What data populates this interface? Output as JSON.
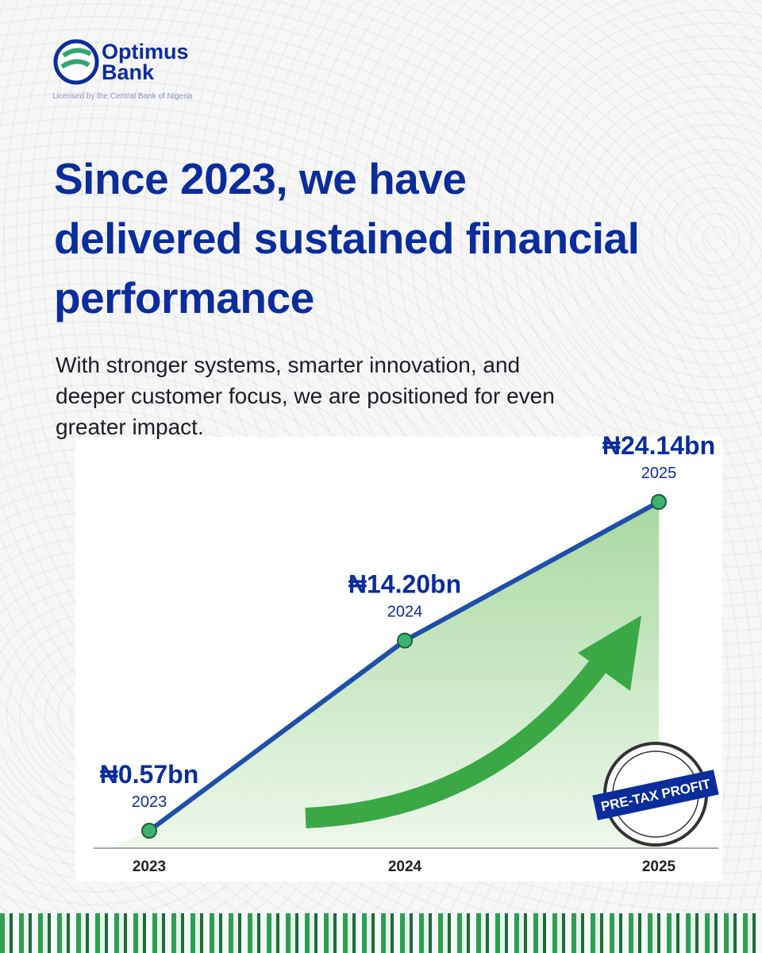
{
  "header": {
    "brand_line1": "Optimus",
    "brand_line2": "Bank",
    "license": "Licensed by the Central Bank of Nigeria"
  },
  "headline": "Since 2023, we have delivered sustained financial performance",
  "subheadline": "With stronger systems, smarter innovation, and deeper customer focus, we are positioned for even greater impact.",
  "chart_data": {
    "type": "line",
    "area": true,
    "categories": [
      "2023",
      "2024",
      "2025"
    ],
    "values": [
      0.57,
      14.2,
      24.14
    ],
    "value_labels": [
      "₦0.57bn",
      "₦14.20bn",
      "₦24.14bn"
    ],
    "color": "#1f4fa8",
    "marker_color": "#3cb371",
    "annotation": "PRE-TAX PROFIT"
  }
}
